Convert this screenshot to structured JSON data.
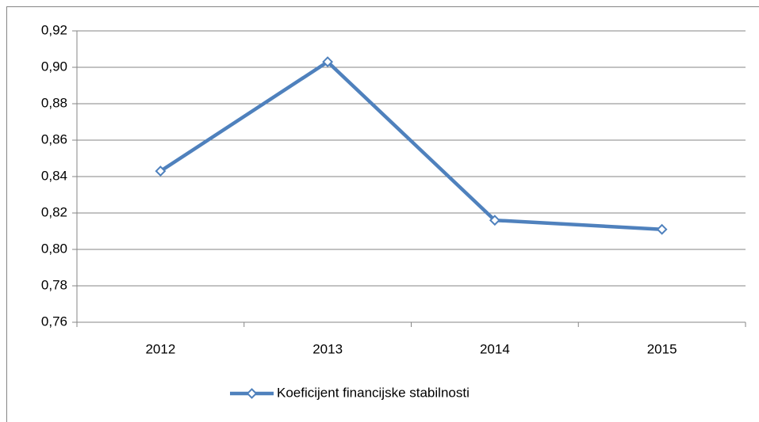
{
  "chart_data": {
    "type": "line",
    "categories": [
      "2012",
      "2013",
      "2014",
      "2015"
    ],
    "series": [
      {
        "name": "Koeficijent financijske stabilnosti",
        "color": "#4f81bd",
        "values": [
          0.843,
          0.903,
          0.816,
          0.811
        ]
      }
    ],
    "ylim": [
      0.76,
      0.92
    ],
    "yticks": [
      {
        "value": 0.76,
        "label": "0,76"
      },
      {
        "value": 0.78,
        "label": "0,78"
      },
      {
        "value": 0.8,
        "label": "0,80"
      },
      {
        "value": 0.82,
        "label": "0,82"
      },
      {
        "value": 0.84,
        "label": "0,84"
      },
      {
        "value": 0.86,
        "label": "0,86"
      },
      {
        "value": 0.88,
        "label": "0,88"
      },
      {
        "value": 0.9,
        "label": "0,90"
      },
      {
        "value": 0.92,
        "label": "0,92"
      }
    ],
    "grid": true,
    "legend": "bottom"
  }
}
